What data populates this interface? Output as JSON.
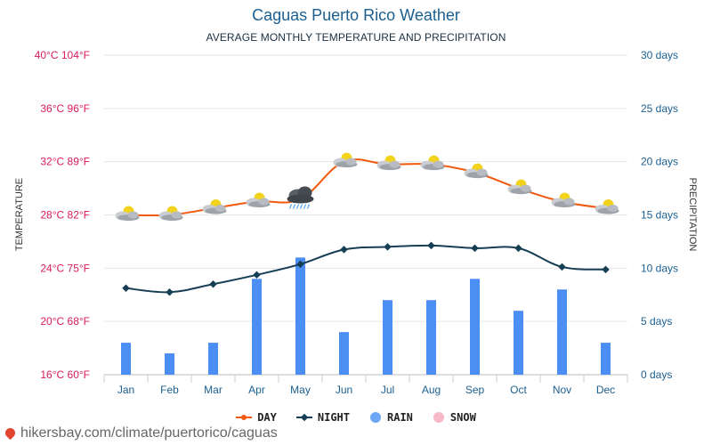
{
  "title": "Caguas Puerto Rico Weather",
  "subtitle": "AVERAGE MONTHLY TEMPERATURE AND PRECIPITATION",
  "source": "hikersbay.com/climate/puertorico/caguas",
  "colors": {
    "day": "#f0590e",
    "night": "#163e54",
    "rain": "#4b8ef4",
    "snow": "#f7b8c8",
    "title": "#1b5f91",
    "left_axis": "#d81b60",
    "right_axis": "#1b5f91",
    "grid": "#e6e6e6"
  },
  "chart_data": {
    "type": "line",
    "title": "Caguas Puerto Rico Weather",
    "subtitle": "AVERAGE MONTHLY TEMPERATURE AND PRECIPITATION",
    "categories": [
      "Jan",
      "Feb",
      "Mar",
      "Apr",
      "May",
      "Jun",
      "Jul",
      "Aug",
      "Sep",
      "Oct",
      "Nov",
      "Dec"
    ],
    "ylabel_left": "TEMPERATURE",
    "ylabel_right": "PRECIPITATION",
    "left_ticks": [
      "16°C 60°F",
      "20°C 68°F",
      "24°C 75°F",
      "28°C 82°F",
      "32°C 89°F",
      "36°C 96°F",
      "40°C 104°F"
    ],
    "left_ylim": [
      16,
      40
    ],
    "right_ticks": [
      "0 days",
      "5 days",
      "10 days",
      "15 days",
      "20 days",
      "25 days",
      "30 days"
    ],
    "right_ylim": [
      0,
      30
    ],
    "grid": true,
    "legend_position": "bottom",
    "series": [
      {
        "name": "DAY",
        "type": "line",
        "axis": "left",
        "unit": "°C",
        "values": [
          28,
          28,
          28.5,
          29,
          29.2,
          32,
          31.8,
          31.8,
          31.2,
          30,
          29,
          28.5
        ]
      },
      {
        "name": "NIGHT",
        "type": "line",
        "axis": "left",
        "unit": "°C",
        "values": [
          22.5,
          22.2,
          22.8,
          23.5,
          24.3,
          25.4,
          25.6,
          25.7,
          25.5,
          25.5,
          24.1,
          23.9
        ]
      },
      {
        "name": "RAIN",
        "type": "bar",
        "axis": "right",
        "unit": "days",
        "values": [
          3,
          2,
          3,
          9,
          11,
          4,
          7,
          7,
          9,
          6,
          8,
          3
        ]
      },
      {
        "name": "SNOW",
        "type": "bar",
        "axis": "right",
        "unit": "days",
        "values": [
          0,
          0,
          0,
          0,
          0,
          0,
          0,
          0,
          0,
          0,
          0,
          0
        ]
      }
    ],
    "weather_icons": [
      "partly-cloudy",
      "partly-cloudy",
      "partly-cloudy",
      "partly-cloudy",
      "thunderstorm-rain",
      "partly-cloudy",
      "partly-cloudy",
      "partly-cloudy",
      "partly-cloudy",
      "partly-cloudy",
      "partly-cloudy",
      "partly-cloudy"
    ]
  }
}
